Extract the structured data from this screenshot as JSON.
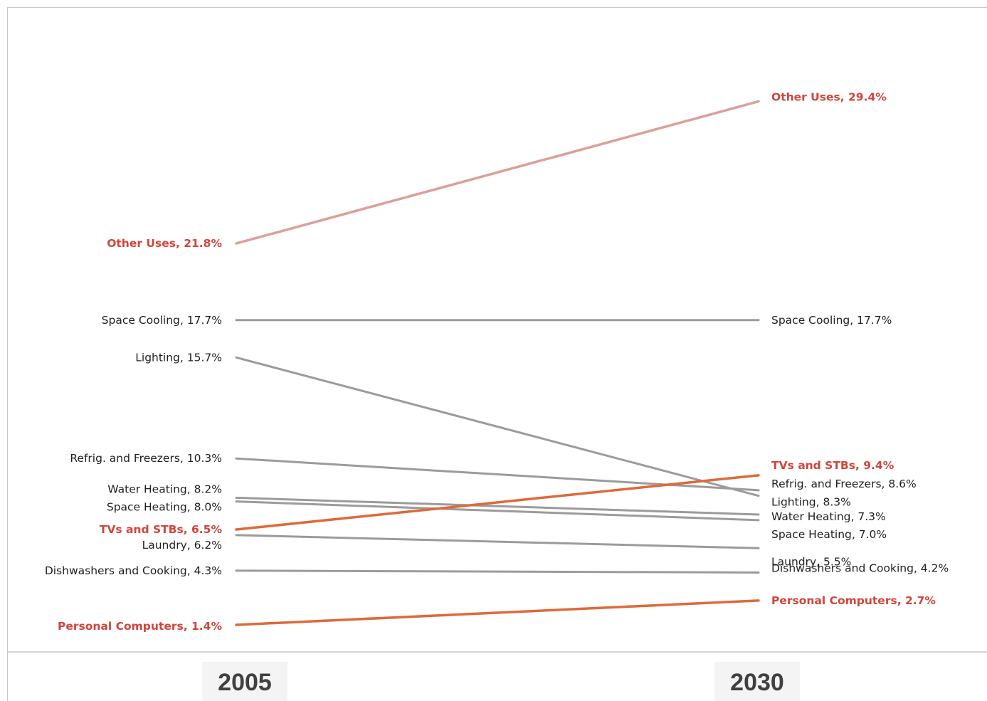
{
  "chart_data": {
    "type": "line",
    "subtype": "slope",
    "x": [
      "2005",
      "2030"
    ],
    "series": [
      {
        "name": "Other Uses",
        "values": [
          21.8,
          29.4
        ],
        "label_start": "Other Uses, 21.8%",
        "label_end": "Other Uses, 29.4%",
        "color": "#d9a09c",
        "label_color": "#d0453b",
        "bold": true
      },
      {
        "name": "Space Cooling",
        "values": [
          17.7,
          17.7
        ],
        "label_start": "Space Cooling, 17.7%",
        "label_end": "Space Cooling, 17.7%",
        "color": "#9b9b9b",
        "label_color": "#1f1f1f",
        "bold": false
      },
      {
        "name": "Lighting",
        "values": [
          15.7,
          8.3
        ],
        "label_start": "Lighting, 15.7%",
        "label_end": "Lighting, 8.3%",
        "color": "#9b9b9b",
        "label_color": "#1f1f1f",
        "bold": false
      },
      {
        "name": "Refrig. and Freezers",
        "values": [
          10.3,
          8.6
        ],
        "label_start": "Refrig. and Freezers, 10.3%",
        "label_end": "Refrig. and Freezers, 8.6%",
        "color": "#9b9b9b",
        "label_color": "#1f1f1f",
        "bold": false
      },
      {
        "name": "Water Heating",
        "values": [
          8.2,
          7.3
        ],
        "label_start": "Water Heating, 8.2%",
        "label_end": "Water Heating, 7.3%",
        "color": "#9b9b9b",
        "label_color": "#1f1f1f",
        "bold": false
      },
      {
        "name": "Space Heating",
        "values": [
          8.0,
          7.0
        ],
        "label_start": "Space Heating, 8.0%",
        "label_end": "Space Heating, 7.0%",
        "color": "#9b9b9b",
        "label_color": "#1f1f1f",
        "bold": false
      },
      {
        "name": "TVs and STBs",
        "values": [
          6.5,
          9.4
        ],
        "label_start": "TVs and STBs, 6.5%",
        "label_end": "TVs and STBs, 9.4%",
        "color": "#dd6a3c",
        "label_color": "#d0453b",
        "bold": true
      },
      {
        "name": "Laundry",
        "values": [
          6.2,
          5.5
        ],
        "label_start": "Laundry, 6.2%",
        "label_end": "Laundry, 5.5%",
        "color": "#9b9b9b",
        "label_color": "#1f1f1f",
        "bold": false
      },
      {
        "name": "Dishwashers and Cooking",
        "values": [
          4.3,
          4.2
        ],
        "label_start": "Dishwashers and Cooking, 4.3%",
        "label_end": "Dishwashers and Cooking, 4.2%",
        "color": "#9b9b9b",
        "label_color": "#1f1f1f",
        "bold": false
      },
      {
        "name": "Personal Computers",
        "values": [
          1.4,
          2.7
        ],
        "label_start": "Personal Computers, 1.4%",
        "label_end": "Personal Computers, 2.7%",
        "color": "#dd6a3c",
        "label_color": "#d0453b",
        "bold": true
      }
    ],
    "title": "",
    "xlabel": "",
    "ylabel": "",
    "grid": false,
    "legend": "none (series labeled at line ends)"
  }
}
